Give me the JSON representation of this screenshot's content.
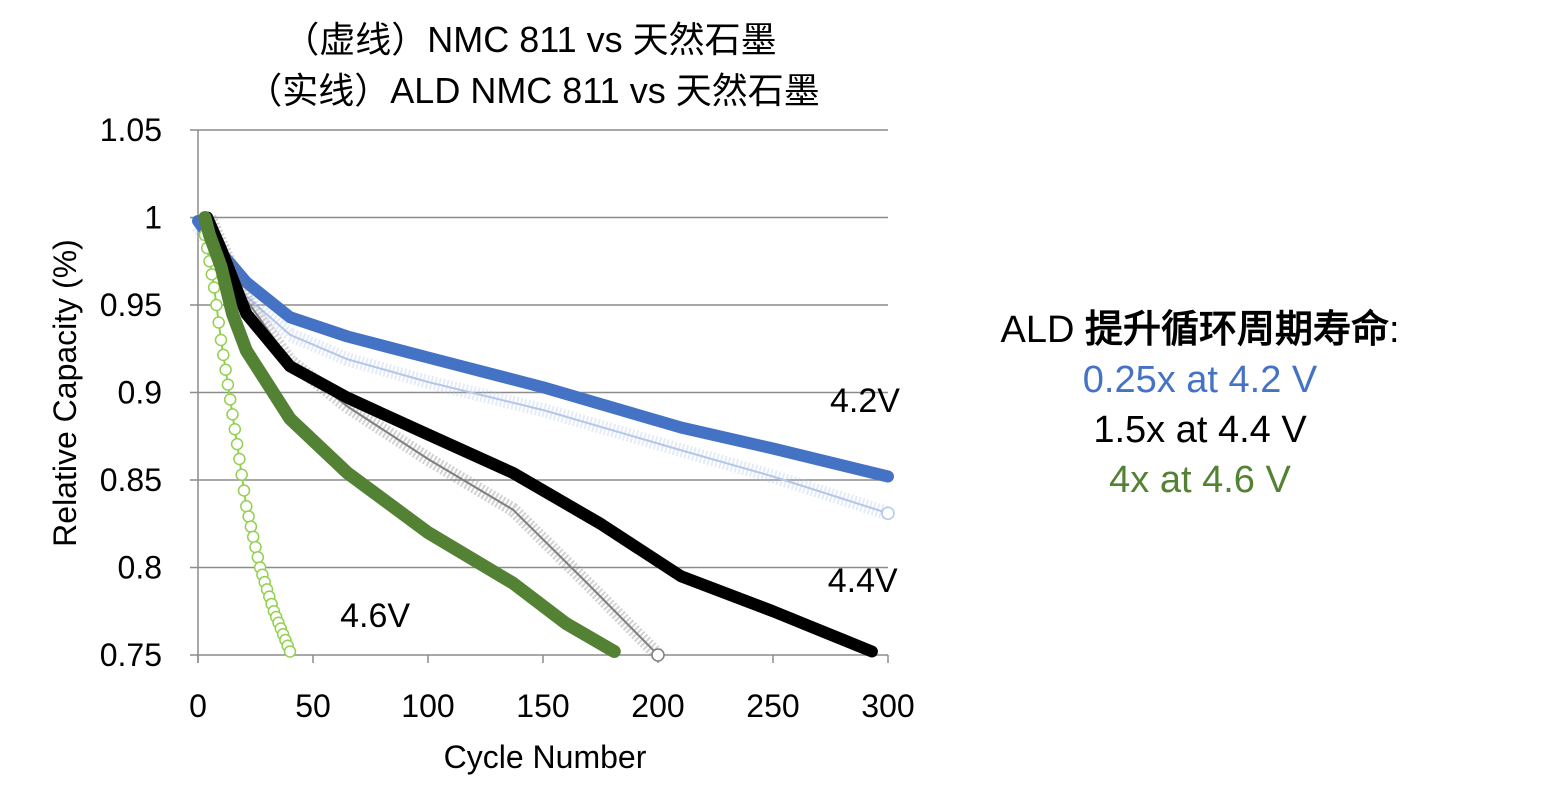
{
  "chart_data": {
    "type": "scatter",
    "title_lines": [
      "（虚线）NMC 811 vs 天然石墨",
      "（实线）ALD NMC 811 vs 天然石墨"
    ],
    "xlabel": "Cycle Number",
    "ylabel": "Relative Capacity (%)",
    "xlim": [
      0,
      300
    ],
    "ylim": [
      0.75,
      1.05
    ],
    "xticks": [
      "0",
      "50",
      "100",
      "150",
      "200",
      "250",
      "300"
    ],
    "yticks": [
      "1.05",
      "1",
      "0.95",
      "0.9",
      "0.85",
      "0.8",
      "0.75"
    ],
    "grid": "horizontal",
    "annotations": [
      {
        "text": "4.2V",
        "x": 290,
        "y": 0.889
      },
      {
        "text": "4.4V",
        "x": 289,
        "y": 0.786
      },
      {
        "text": "4.6V",
        "x": 77,
        "y": 0.766
      }
    ],
    "series": [
      {
        "style": "dashed-hollow",
        "voltage": "4.2V",
        "color": "#B4C7E7",
        "points": [
          [
            0,
            0.995
          ],
          [
            10,
            0.975
          ],
          [
            21,
            0.955
          ],
          [
            40,
            0.933
          ],
          [
            65,
            0.919
          ],
          [
            100,
            0.906
          ],
          [
            150,
            0.89
          ],
          [
            210,
            0.867
          ],
          [
            250,
            0.852
          ],
          [
            300,
            0.831
          ]
        ]
      },
      {
        "style": "solid",
        "voltage": "4.2V",
        "color": "#4472C4",
        "points": [
          [
            0,
            0.998
          ],
          [
            10,
            0.98
          ],
          [
            21,
            0.963
          ],
          [
            40,
            0.943
          ],
          [
            65,
            0.932
          ],
          [
            100,
            0.92
          ],
          [
            150,
            0.903
          ],
          [
            210,
            0.88
          ],
          [
            250,
            0.868
          ],
          [
            300,
            0.852
          ]
        ]
      },
      {
        "style": "dashed-hollow",
        "voltage": "4.4V",
        "color": "#7F7F7F",
        "points": [
          [
            5,
            1.0
          ],
          [
            10,
            0.985
          ],
          [
            21,
            0.953
          ],
          [
            40,
            0.918
          ],
          [
            65,
            0.892
          ],
          [
            100,
            0.862
          ],
          [
            137,
            0.833
          ],
          [
            170,
            0.79
          ],
          [
            200,
            0.75
          ]
        ]
      },
      {
        "style": "solid",
        "voltage": "4.4V",
        "color": "#000000",
        "points": [
          [
            4,
            1.0
          ],
          [
            10,
            0.982
          ],
          [
            21,
            0.945
          ],
          [
            40,
            0.915
          ],
          [
            65,
            0.897
          ],
          [
            100,
            0.876
          ],
          [
            137,
            0.854
          ],
          [
            175,
            0.825
          ],
          [
            210,
            0.795
          ],
          [
            250,
            0.775
          ],
          [
            293,
            0.752
          ]
        ]
      },
      {
        "style": "dashed-hollow",
        "voltage": "4.6V",
        "color": "#92D050",
        "points": [
          [
            3,
            0.99
          ],
          [
            7,
            0.96
          ],
          [
            10,
            0.93
          ],
          [
            14,
            0.896
          ],
          [
            18,
            0.862
          ],
          [
            21,
            0.835
          ],
          [
            27,
            0.8
          ],
          [
            33,
            0.775
          ],
          [
            40,
            0.752
          ]
        ]
      },
      {
        "style": "solid",
        "voltage": "4.6V",
        "color": "#548235",
        "points": [
          [
            3,
            1.0
          ],
          [
            5,
            0.99
          ],
          [
            10,
            0.972
          ],
          [
            15,
            0.945
          ],
          [
            21,
            0.924
          ],
          [
            40,
            0.885
          ],
          [
            65,
            0.854
          ],
          [
            100,
            0.82
          ],
          [
            137,
            0.791
          ],
          [
            160,
            0.768
          ],
          [
            181,
            0.752
          ]
        ]
      }
    ]
  },
  "side_note": {
    "line1_prefix": "ALD ",
    "line1_bold": "提升循环周期寿命",
    "line1_suffix": ":",
    "line2": "0.25x at 4.2 V",
    "line3": "1.5x at 4.4 V",
    "line4": "4x at 4.6 V",
    "colors": {
      "line2": "#4472C4",
      "line3": "#000000",
      "line4": "#548235"
    }
  }
}
